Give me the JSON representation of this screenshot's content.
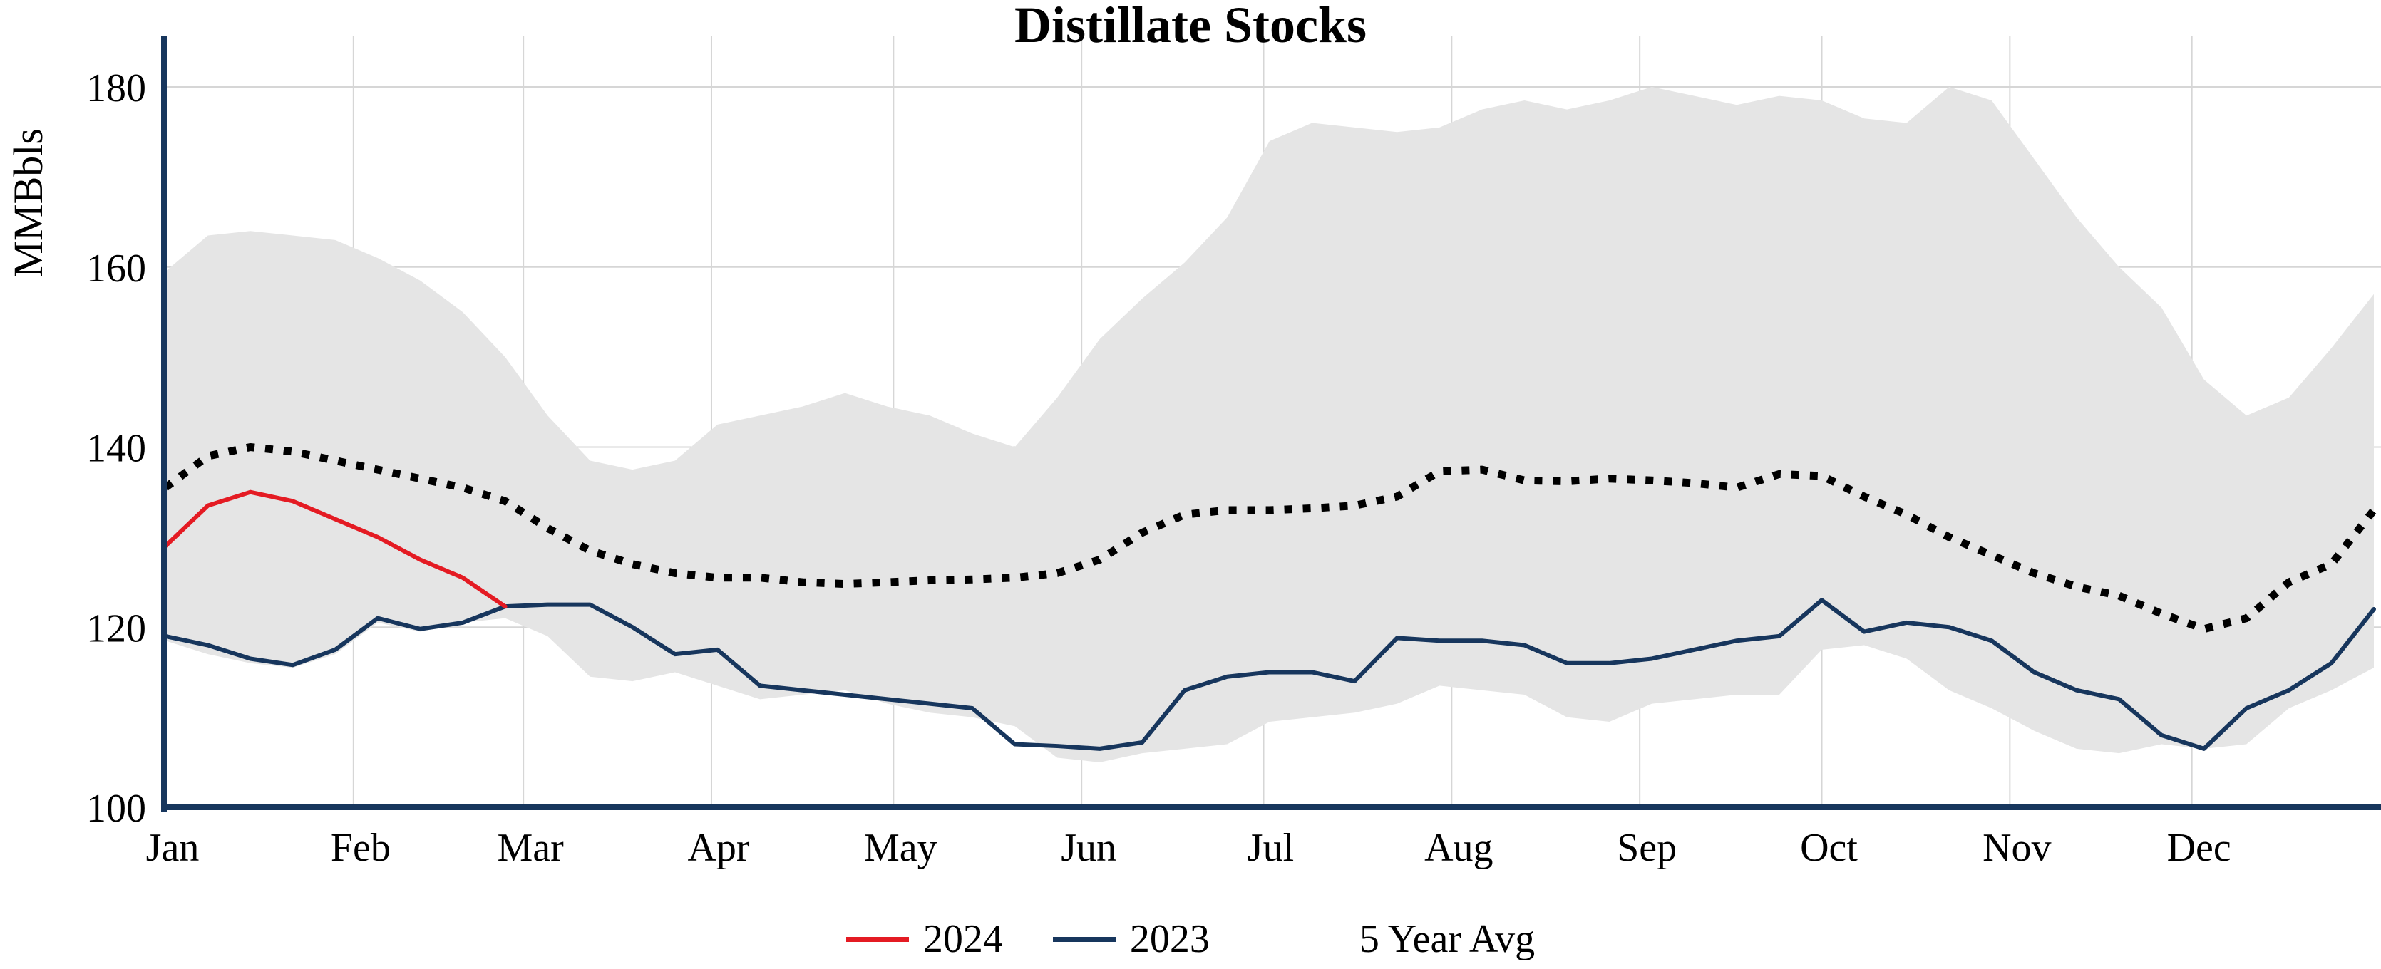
{
  "chart": {
    "title": "Distillate Stocks",
    "ylabel": "MMBbls"
  },
  "chart_data": {
    "type": "line",
    "title": "Distillate Stocks",
    "xlabel": "",
    "ylabel": "MMBbls",
    "ylim": [
      100,
      186
    ],
    "yticks": [
      100,
      120,
      140,
      160,
      180
    ],
    "xtick_labels": [
      "Jan",
      "Feb",
      "Mar",
      "Apr",
      "May",
      "Jun",
      "Jul",
      "Aug",
      "Sep",
      "Oct",
      "Nov",
      "Dec"
    ],
    "xtick_days": [
      1,
      32,
      60,
      91,
      121,
      152,
      182,
      213,
      244,
      274,
      305,
      335
    ],
    "grid": true,
    "legend_position": "bottom",
    "x_days": [
      1,
      8,
      15,
      22,
      29,
      36,
      43,
      50,
      57,
      64,
      71,
      78,
      85,
      92,
      99,
      106,
      113,
      120,
      127,
      134,
      141,
      148,
      155,
      162,
      169,
      176,
      183,
      190,
      197,
      204,
      211,
      218,
      225,
      232,
      239,
      246,
      253,
      260,
      267,
      274,
      281,
      288,
      295,
      302,
      309,
      316,
      323,
      330,
      337,
      344,
      351,
      358,
      365
    ],
    "band": {
      "name": "5-year range",
      "fill": "#e5e5e5",
      "upper": [
        159.5,
        163.5,
        164,
        163.5,
        163,
        161,
        158.5,
        155,
        150,
        143.5,
        138.5,
        137.5,
        138.5,
        142.5,
        143.5,
        144.5,
        146,
        144.5,
        143.5,
        141.5,
        140,
        145.5,
        152,
        156.5,
        160.5,
        165.5,
        174,
        176,
        175.5,
        175,
        175.5,
        177.5,
        178.5,
        177.5,
        178.5,
        180,
        179,
        178,
        179,
        178.5,
        176.5,
        176,
        180,
        178.5,
        172,
        165.5,
        160,
        155.5,
        147.5,
        143.5,
        145.5,
        151,
        157
      ],
      "lower": [
        118.5,
        117,
        116,
        115.5,
        117,
        120.5,
        119.5,
        120.5,
        121,
        119,
        114.5,
        114,
        115,
        113.5,
        112,
        112.5,
        113,
        111.5,
        110.5,
        110,
        109,
        105.5,
        105,
        106,
        106.5,
        107,
        109.5,
        110,
        110.5,
        111.5,
        113.5,
        113,
        112.5,
        110,
        109.5,
        111.5,
        112,
        112.5,
        112.5,
        117.5,
        118,
        116.5,
        113,
        111,
        108.5,
        106.5,
        106,
        107,
        106.5,
        107,
        111,
        113,
        115.5
      ]
    },
    "series": [
      {
        "name": "2024",
        "color": "#e41b23",
        "style": "solid",
        "x_days": [
          1,
          8,
          15,
          22,
          29,
          36,
          43,
          50,
          57
        ],
        "values": [
          129,
          133.5,
          135,
          134,
          132,
          130,
          127.5,
          125.5,
          122.3
        ]
      },
      {
        "name": "2023",
        "color": "#17365d",
        "style": "solid",
        "x_days": [
          1,
          8,
          15,
          22,
          29,
          36,
          43,
          50,
          57,
          64,
          71,
          78,
          85,
          92,
          99,
          106,
          113,
          120,
          127,
          134,
          141,
          148,
          155,
          162,
          169,
          176,
          183,
          190,
          197,
          204,
          211,
          218,
          225,
          232,
          239,
          246,
          253,
          260,
          267,
          274,
          281,
          288,
          295,
          302,
          309,
          316,
          323,
          330,
          337,
          344,
          351,
          358,
          365
        ],
        "values": [
          119,
          118,
          116.5,
          115.8,
          117.5,
          121,
          119.8,
          120.5,
          122.3,
          122.5,
          122.5,
          120,
          117,
          117.5,
          113.5,
          113,
          112.5,
          112,
          111.5,
          111,
          107,
          106.8,
          106.5,
          107.2,
          113,
          114.5,
          115,
          115,
          114,
          118.8,
          118.5,
          118.5,
          118,
          116,
          116,
          116.5,
          117.5,
          118.5,
          119,
          123,
          119.5,
          120.5,
          120,
          118.5,
          115,
          113,
          112,
          108,
          106.5,
          111,
          113,
          116,
          122
        ]
      },
      {
        "name": "5 Year Avg",
        "color": "#000000",
        "style": "dotted",
        "x_days": [
          1,
          8,
          15,
          22,
          29,
          36,
          43,
          50,
          57,
          64,
          71,
          78,
          85,
          92,
          99,
          106,
          113,
          120,
          127,
          134,
          141,
          148,
          155,
          162,
          169,
          176,
          183,
          190,
          197,
          204,
          211,
          218,
          225,
          232,
          239,
          246,
          253,
          260,
          267,
          274,
          281,
          288,
          295,
          302,
          309,
          316,
          323,
          330,
          337,
          344,
          351,
          358,
          365
        ],
        "values": [
          135.5,
          139,
          140,
          139.5,
          138.5,
          137.5,
          136.5,
          135.5,
          134,
          131,
          128.5,
          127,
          126,
          125.5,
          125.5,
          125,
          124.8,
          125,
          125.2,
          125.3,
          125.5,
          126,
          127.5,
          130.5,
          132.5,
          133,
          133,
          133.2,
          133.5,
          134.5,
          137.3,
          137.5,
          136.3,
          136.2,
          136.5,
          136.3,
          136,
          135.5,
          137,
          136.8,
          134.5,
          132.5,
          130,
          128,
          126,
          124.5,
          123.5,
          121.5,
          119.8,
          121,
          125,
          127,
          133
        ]
      }
    ],
    "colors": {
      "axis": "#17365d",
      "grid": "#d6d6d6",
      "band_fill": "#e5e5e5"
    }
  }
}
